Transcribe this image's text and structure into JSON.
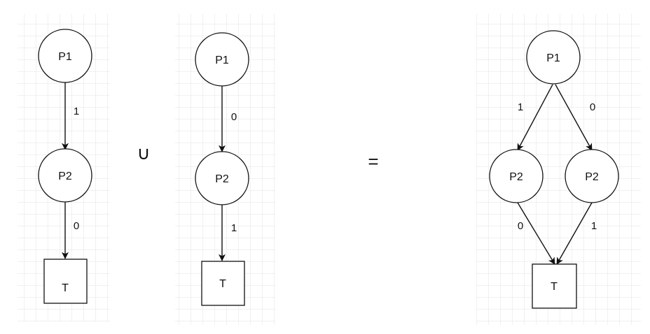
{
  "diagrams": {
    "left": {
      "node_p1": "P1",
      "node_p2": "P2",
      "node_t": "T",
      "edge_p1_p2": "1",
      "edge_p2_t": "0"
    },
    "middle": {
      "node_p1": "P1",
      "node_p2": "P2",
      "node_t": "T",
      "edge_p1_p2": "0",
      "edge_p2_t": "1"
    },
    "result": {
      "node_p1": "P1",
      "node_p2_left": "P2",
      "node_p2_right": "P2",
      "node_t": "T",
      "edge_p1_p2_left": "1",
      "edge_p1_p2_right": "0",
      "edge_p2_left_t": "0",
      "edge_p2_right_t": "1"
    }
  },
  "operators": {
    "union": "∪",
    "equals": "="
  },
  "colors": {
    "grid": "#e3e3e3",
    "stroke": "#111111",
    "background": "#ffffff"
  }
}
